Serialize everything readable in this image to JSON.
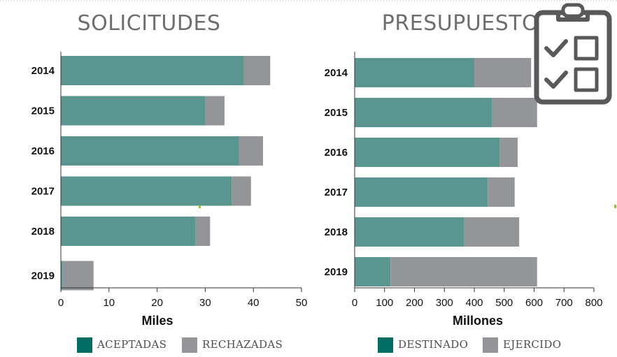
{
  "colors": {
    "primary": "#5a958f",
    "secondary": "#939598",
    "legend_primary": "#006c62",
    "title": "#6d6e71"
  },
  "icon": "clipboard-checklist-icon",
  "chart_data": [
    {
      "type": "bar",
      "orientation": "horizontal",
      "stacked": true,
      "title": "SOLICITUDES",
      "xlabel": "Miles",
      "categories": [
        "2014",
        "2015",
        "2016",
        "2017",
        "2018",
        "2019"
      ],
      "series": [
        {
          "name": "ACEPTADAS",
          "values": [
            38,
            30,
            37,
            35.5,
            28,
            0.3
          ]
        },
        {
          "name": "RECHAZADAS",
          "values": [
            5.5,
            4,
            5,
            4,
            3,
            6.5
          ]
        }
      ],
      "xlim": [
        0,
        50
      ],
      "xticks": [
        "0",
        "10",
        "20",
        "30",
        "40",
        "50"
      ],
      "legend": "bottom"
    },
    {
      "type": "bar",
      "orientation": "horizontal",
      "stacked": true,
      "title": "PRESUPUESTO",
      "xlabel": "Millones",
      "categories": [
        "2014",
        "2015",
        "2016",
        "2017",
        "2018",
        "2019"
      ],
      "series": [
        {
          "name": "DESTINADO",
          "values": [
            400,
            460,
            485,
            445,
            365,
            120
          ]
        },
        {
          "name": "EJERCIDO",
          "values": [
            190,
            150,
            60,
            90,
            185,
            490
          ]
        }
      ],
      "xlim": [
        0,
        800
      ],
      "xticks": [
        "0",
        "100",
        "200",
        "300",
        "400",
        "500",
        "600",
        "700",
        "800"
      ],
      "legend": "bottom"
    }
  ]
}
